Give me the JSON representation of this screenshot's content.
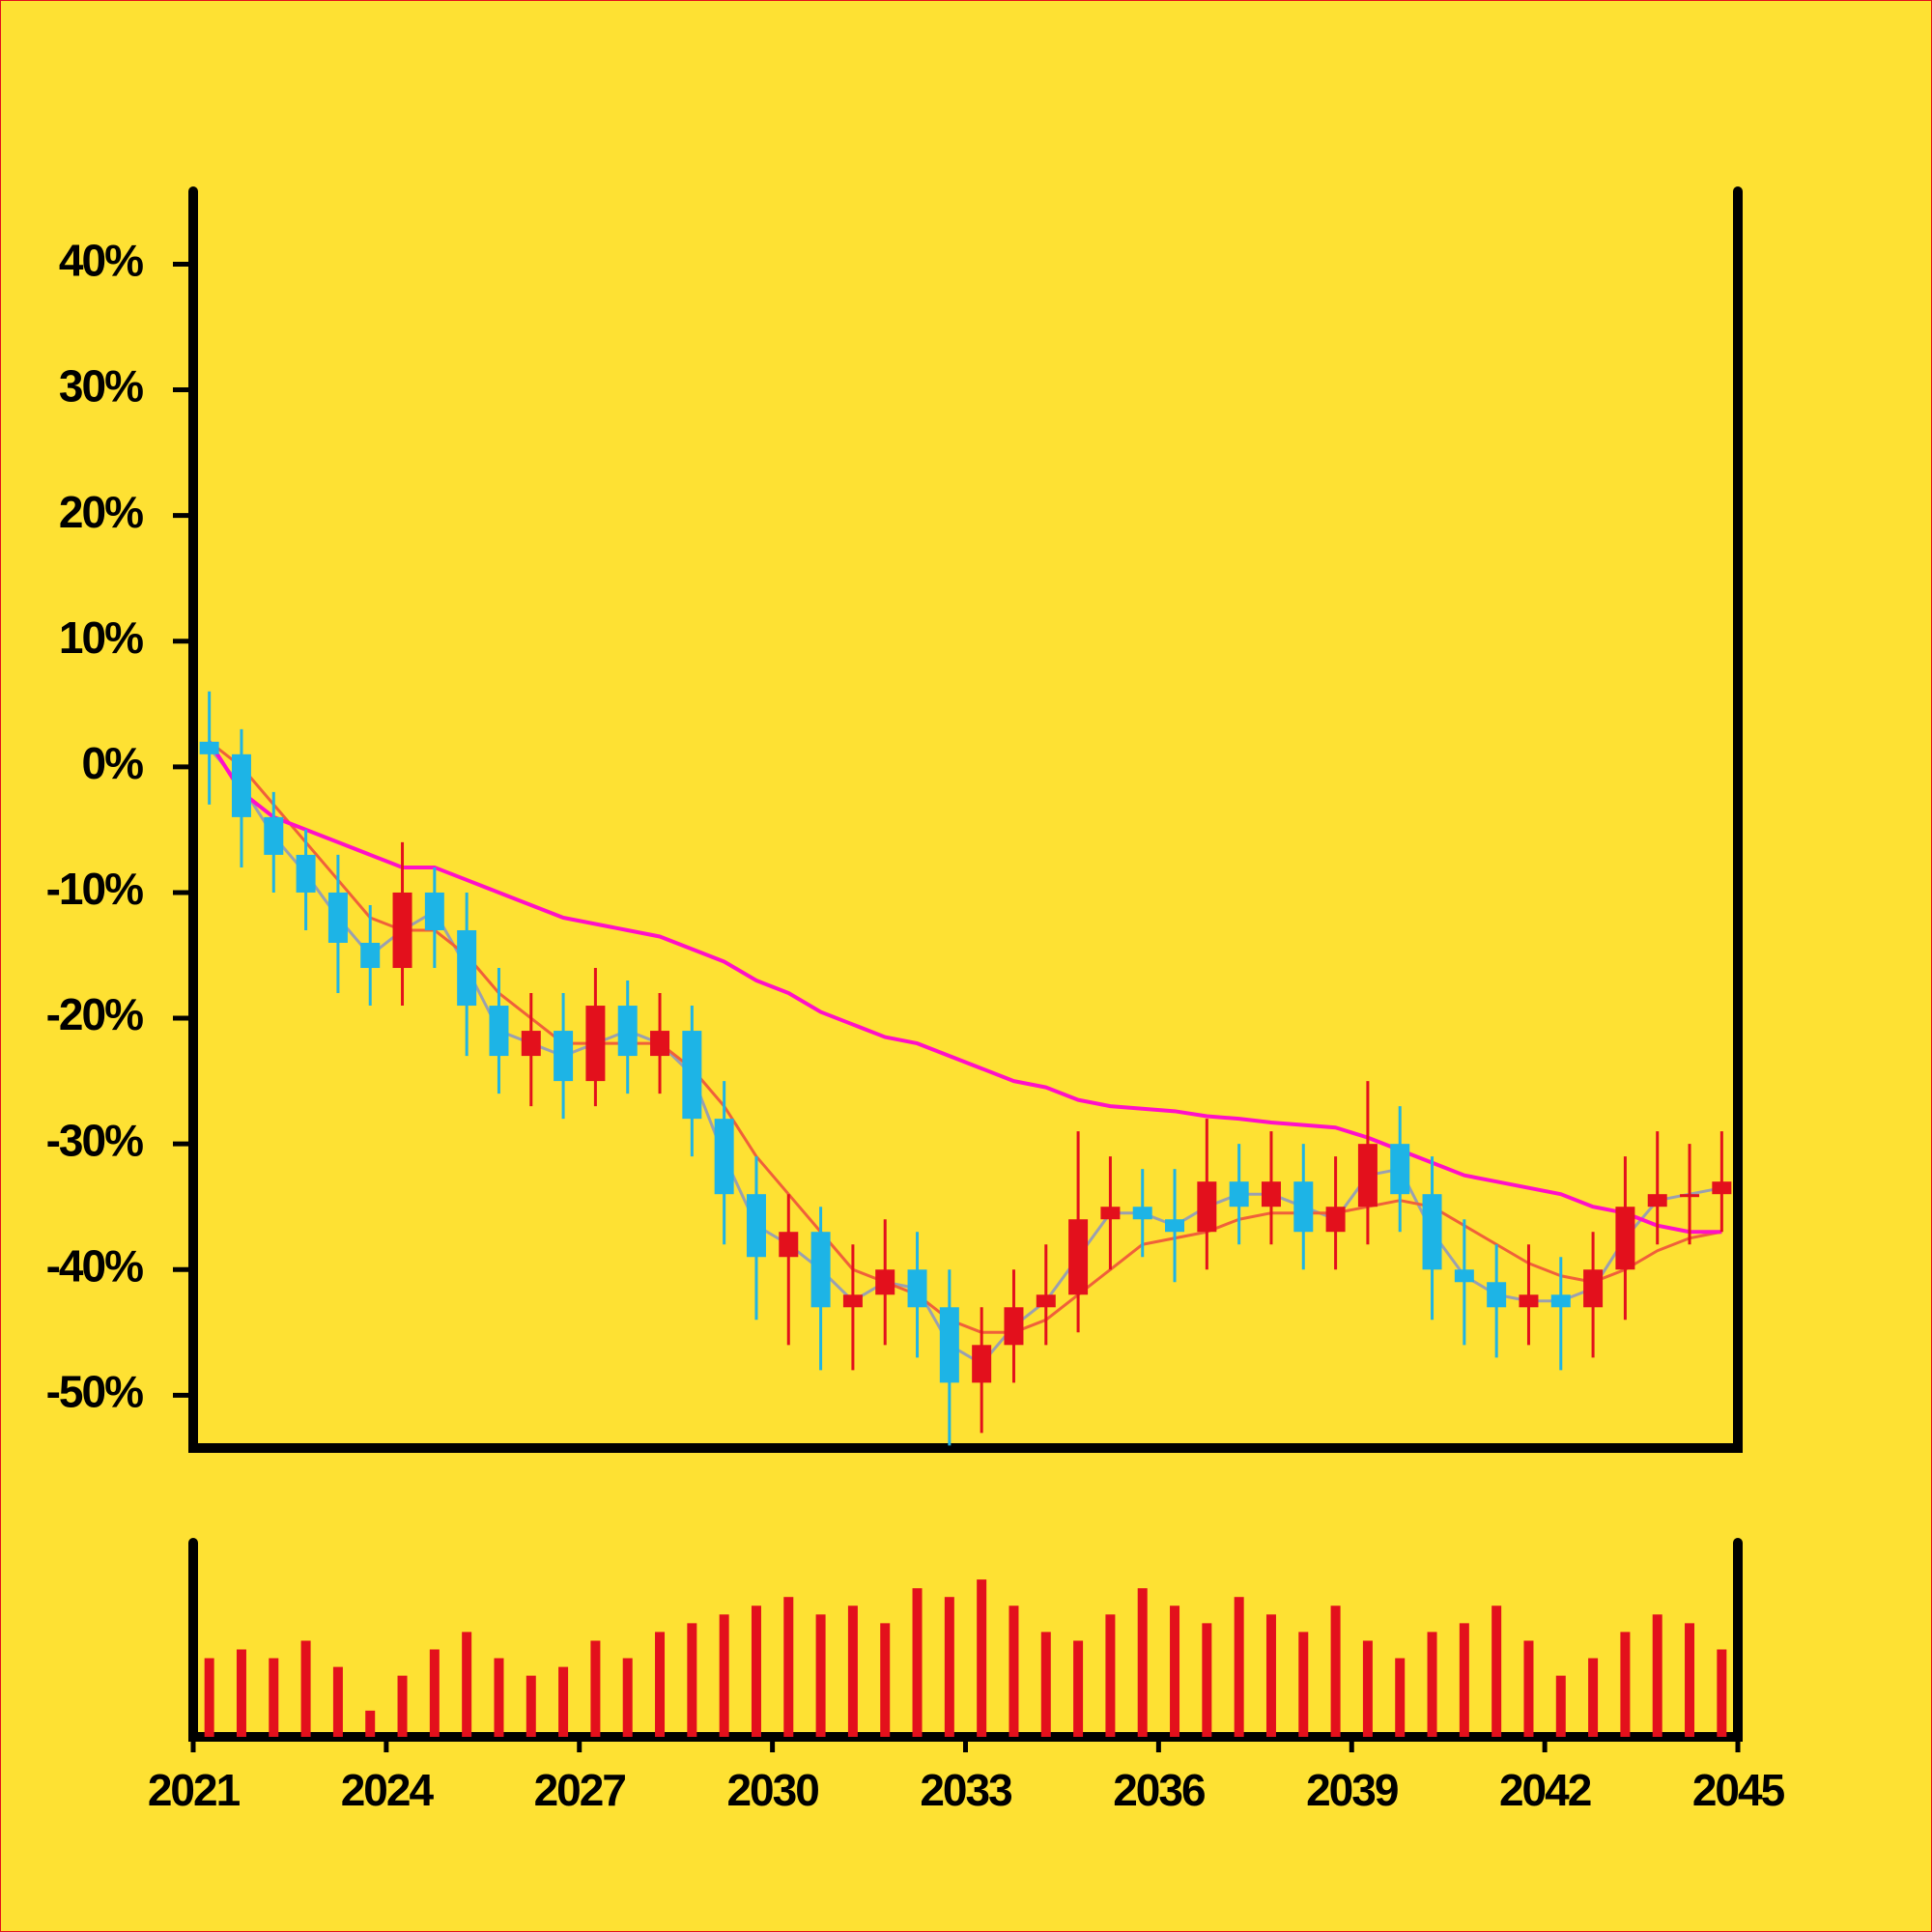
{
  "chart_data": {
    "type": "candlestick",
    "x": [
      2021.25,
      2021.75,
      2022.25,
      2022.75,
      2023.25,
      2023.75,
      2024.25,
      2024.75,
      2025.25,
      2025.75,
      2026.25,
      2026.75,
      2027.25,
      2027.75,
      2028.25,
      2028.75,
      2029.25,
      2029.75,
      2030.25,
      2030.75,
      2031.25,
      2031.75,
      2032.25,
      2032.75,
      2033.25,
      2033.75,
      2034.25,
      2034.75,
      2035.25,
      2035.75,
      2036.25,
      2036.75,
      2037.25,
      2037.75,
      2038.25,
      2038.75,
      2039.25,
      2039.75,
      2040.25,
      2040.75,
      2041.25,
      2041.75,
      2042.25,
      2042.75,
      2043.25,
      2043.75,
      2044.25,
      2044.75
    ],
    "open": [
      2,
      1,
      -4,
      -7,
      -10,
      -14,
      -16,
      -10,
      -13,
      -19,
      -23,
      -21,
      -25,
      -19,
      -23,
      -21,
      -28,
      -34,
      -39,
      -37,
      -43,
      -42,
      -40,
      -43,
      -49,
      -46,
      -43,
      -42,
      -36,
      -35,
      -36,
      -37,
      -33,
      -35,
      -33,
      -37,
      -35,
      -30,
      -34,
      -40,
      -41,
      -43,
      -42,
      -43,
      -40,
      -35,
      -34,
      -34
    ],
    "high": [
      6,
      3,
      -2,
      -5,
      -7,
      -11,
      -6,
      -8,
      -10,
      -16,
      -18,
      -18,
      -16,
      -17,
      -18,
      -19,
      -25,
      -31,
      -34,
      -35,
      -38,
      -36,
      -37,
      -40,
      -43,
      -40,
      -38,
      -29,
      -31,
      -32,
      -32,
      -28,
      -30,
      -29,
      -30,
      -31,
      -25,
      -27,
      -31,
      -36,
      -38,
      -38,
      -39,
      -37,
      -31,
      -29,
      -30,
      -29
    ],
    "low": [
      -3,
      -8,
      -10,
      -13,
      -18,
      -19,
      -19,
      -16,
      -23,
      -26,
      -27,
      -28,
      -27,
      -26,
      -26,
      -31,
      -38,
      -44,
      -46,
      -48,
      -48,
      -46,
      -47,
      -54,
      -53,
      -49,
      -46,
      -45,
      -40,
      -39,
      -41,
      -40,
      -38,
      -38,
      -40,
      -40,
      -38,
      -37,
      -44,
      -46,
      -47,
      -46,
      -48,
      -47,
      -44,
      -38,
      -38,
      -37
    ],
    "close": [
      1,
      -4,
      -7,
      -10,
      -14,
      -16,
      -10,
      -13,
      -19,
      -23,
      -21,
      -25,
      -19,
      -23,
      -21,
      -28,
      -34,
      -39,
      -37,
      -43,
      -42,
      -40,
      -43,
      -49,
      -46,
      -43,
      -42,
      -36,
      -35,
      -36,
      -37,
      -33,
      -35,
      -33,
      -37,
      -35,
      -30,
      -34,
      -40,
      -41,
      -43,
      -42,
      -43,
      -40,
      -35,
      -34,
      -34,
      -33
    ],
    "up_color": "#e3101c",
    "down_color": "#1db4e6",
    "lines": [
      {
        "color": "#9aa0b0",
        "values": [
          1.5,
          -1.5,
          -5.5,
          -8.5,
          -12,
          -15,
          -13,
          -11.5,
          -16,
          -21,
          -22,
          -23,
          -22,
          -21,
          -22,
          -24.5,
          -31,
          -36.5,
          -38,
          -40,
          -42.5,
          -41,
          -41.5,
          -46,
          -47.5,
          -44.5,
          -42.5,
          -39,
          -35.5,
          -35.5,
          -36.5,
          -35,
          -34,
          -34,
          -35,
          -36,
          -32.5,
          -32,
          -37,
          -40.5,
          -42,
          -42.5,
          -42.5,
          -41.5,
          -37.5,
          -34.5,
          -34,
          -33.5
        ]
      },
      {
        "color": "#f0603a",
        "values": [
          2,
          0,
          -3,
          -6,
          -9,
          -12,
          -13,
          -13,
          -15,
          -18,
          -20,
          -22,
          -22,
          -22,
          -22,
          -24,
          -27,
          -31,
          -34,
          -37,
          -40,
          -41,
          -42,
          -44,
          -45,
          -45,
          -44,
          -42,
          -40,
          -38,
          -37.5,
          -37,
          -36,
          -35.5,
          -35.5,
          -35.5,
          -35,
          -34.5,
          -35,
          -36.5,
          -38,
          -39.5,
          -40.5,
          -41,
          -40,
          -38.5,
          -37.5,
          -37
        ]
      },
      {
        "color": "#ff10c8",
        "values": [
          2,
          -2,
          -4,
          -5,
          -6,
          -7,
          -8,
          -8,
          -9,
          -10,
          -11,
          -12,
          -12.5,
          -13,
          -13.5,
          -14.5,
          -15.5,
          -17,
          -18,
          -19.5,
          -20.5,
          -21.5,
          -22,
          -23,
          -24,
          -25,
          -25.5,
          -26.5,
          -27,
          -27.2,
          -27.4,
          -27.8,
          -28,
          -28.3,
          -28.5,
          -28.7,
          -29.5,
          -30.5,
          -31.5,
          -32.5,
          -33,
          -33.5,
          -34,
          -35,
          -35.5,
          -36.5,
          -37,
          -37
        ]
      }
    ],
    "volume": [
      45,
      50,
      45,
      55,
      40,
      15,
      35,
      50,
      60,
      45,
      35,
      40,
      55,
      45,
      60,
      65,
      70,
      75,
      80,
      70,
      75,
      65,
      85,
      80,
      90,
      75,
      60,
      55,
      70,
      85,
      75,
      65,
      80,
      70,
      60,
      75,
      55,
      45,
      60,
      65,
      75,
      55,
      35,
      45,
      60,
      70,
      65,
      50
    ],
    "volume_color": "#e3101c",
    "volume_ylim": [
      0,
      100
    ],
    "xlim": [
      2021,
      2045
    ],
    "xticks": [
      2021,
      2024,
      2027,
      2030,
      2033,
      2036,
      2039,
      2042,
      2045
    ],
    "ylim": [
      -54.2,
      45.8
    ],
    "yticks": [
      {
        "value": 40,
        "label": "40%"
      },
      {
        "value": 30,
        "label": "30%"
      },
      {
        "value": 20,
        "label": "20%"
      },
      {
        "value": 10,
        "label": "10%"
      },
      {
        "value": 0,
        "label": "0%"
      },
      {
        "value": -10,
        "label": "-10%"
      },
      {
        "value": -20,
        "label": "-20%"
      },
      {
        "value": -30,
        "label": "-30%"
      },
      {
        "value": -40,
        "label": "-40%"
      },
      {
        "value": -50,
        "label": "-50%"
      }
    ]
  }
}
